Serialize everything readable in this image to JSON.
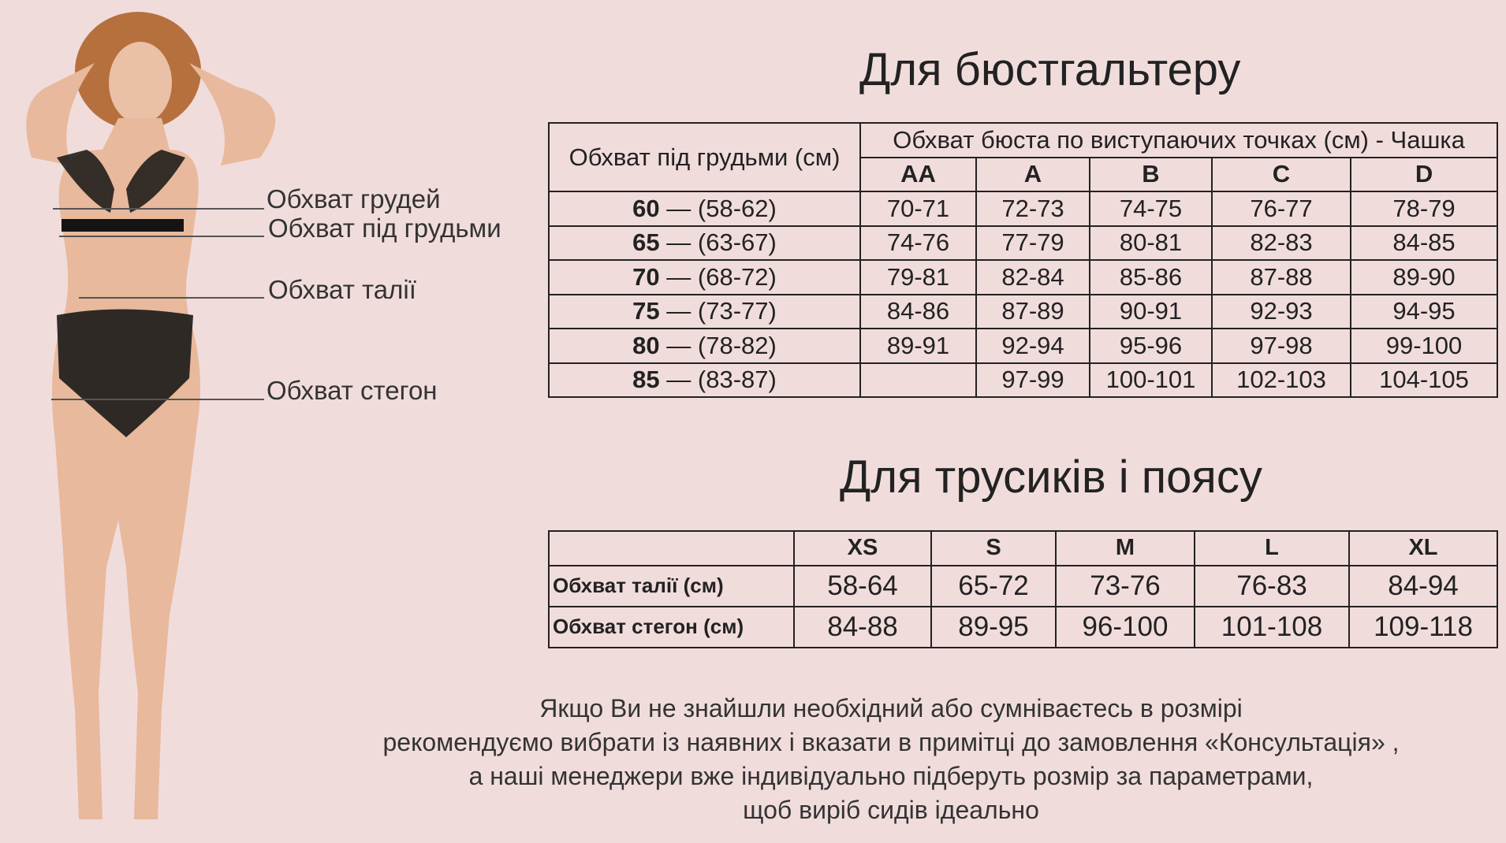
{
  "bra": {
    "title": "Для бюстгальтеру",
    "header_underbust": "Обхват під грудьми (см)",
    "header_bust": "Обхват бюста по виступаючих точках (см) - Чашка",
    "cups": [
      "AA",
      "A",
      "B",
      "C",
      "D"
    ],
    "rows": [
      {
        "band": "60",
        "range": "— (58-62)",
        "values": [
          "70-71",
          "72-73",
          "74-75",
          "76-77",
          "78-79"
        ]
      },
      {
        "band": "65",
        "range": "— (63-67)",
        "values": [
          "74-76",
          "77-79",
          "80-81",
          "82-83",
          "84-85"
        ]
      },
      {
        "band": "70",
        "range": "— (68-72)",
        "values": [
          "79-81",
          "82-84",
          "85-86",
          "87-88",
          "89-90"
        ]
      },
      {
        "band": "75",
        "range": "— (73-77)",
        "values": [
          "84-86",
          "87-89",
          "90-91",
          "92-93",
          "94-95"
        ]
      },
      {
        "band": "80",
        "range": "— (78-82)",
        "values": [
          "89-91",
          "92-94",
          "95-96",
          "97-98",
          "99-100"
        ]
      },
      {
        "band": "85",
        "range": "— (83-87)",
        "values": [
          "",
          "97-99",
          "100-101",
          "102-103",
          "104-105"
        ]
      }
    ]
  },
  "briefs": {
    "title": "Для трусиків і поясу",
    "sizes": [
      "XS",
      "S",
      "M",
      "L",
      "XL"
    ],
    "rows": [
      {
        "label": "Обхват талії (см)",
        "values": [
          "58-64",
          "65-72",
          "73-76",
          "76-83",
          "84-94"
        ]
      },
      {
        "label": "Обхват стегон (см)",
        "values": [
          "84-88",
          "89-95",
          "96-100",
          "101-108",
          "109-118"
        ]
      }
    ]
  },
  "figure_labels": {
    "bust": "Обхват грудей",
    "underbust": "Обхват під грудьми",
    "waist": "Обхват талії",
    "hips": "Обхват стегон"
  },
  "note": [
    "Якщо Ви не знайшли необхідний або сумніваєтесь в розмірі",
    "рекомендуємо вибрати із наявних і вказати в примітці до замовлення «Консультація» ,",
    "а наші менеджери вже індивідуально підберуть розмір за параметрами,",
    "щоб виріб сидів ідеально"
  ],
  "colors": {
    "background": "#f1dcdc",
    "text": "#222222",
    "skin": "#e8b99c",
    "lingerie": "#141414",
    "hair": "#b5703e"
  }
}
